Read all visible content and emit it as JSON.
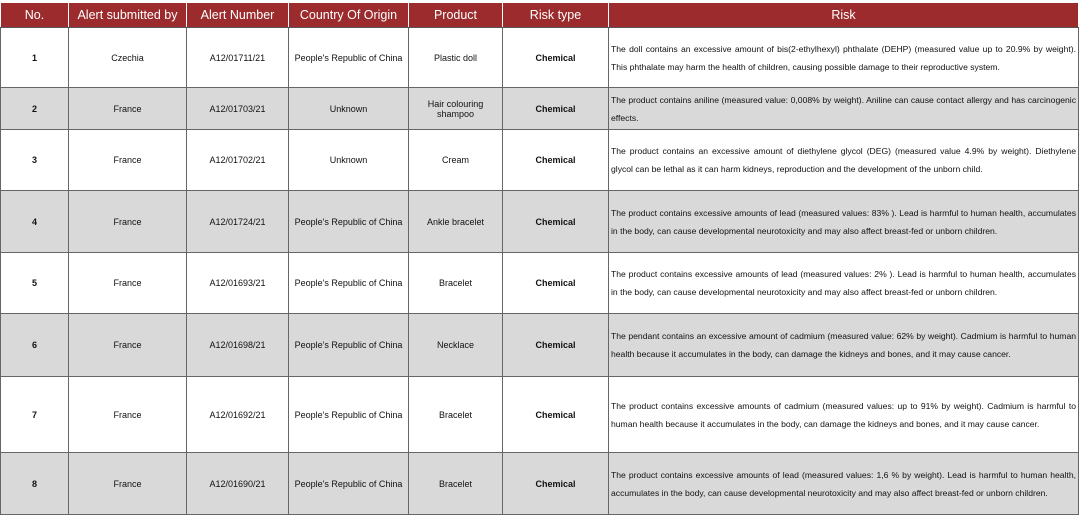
{
  "table": {
    "header": [
      "No.",
      "Alert submitted by",
      "Alert Number",
      "Country Of Origin",
      "Product",
      "Risk type",
      "Risk"
    ],
    "rows": [
      [
        "1",
        "Czechia",
        "A12/01711/21",
        "People's Republic of China",
        "Plastic doll",
        "Chemical",
        "The doll contains an excessive amount of bis(2-ethylhexyl) phthalate (DEHP) (measured value up to 20.9% by weight). This phthalate may harm the health of children, causing possible damage to their reproductive system."
      ],
      [
        "2",
        "France",
        "A12/01703/21",
        "Unknown",
        "Hair colouring shampoo",
        "Chemical",
        "The product contains aniline (measured value: 0,008% by weight). Aniline can cause contact allergy and has carcinogenic effects."
      ],
      [
        "3",
        "France",
        "A12/01702/21",
        "Unknown",
        "Cream",
        "Chemical",
        "The product contains an excessive amount of diethylene glycol (DEG) (measured value 4.9% by weight). Diethylene glycol can be lethal as it can harm kidneys, reproduction and the development of the unborn child."
      ],
      [
        "4",
        "France",
        "A12/01724/21",
        "People's Republic of China",
        "Ankle bracelet",
        "Chemical",
        "The product contains excessive amounts of lead (measured values: 83% ). Lead is harmful to human health, accumulates in the body, can cause developmental neurotoxicity and may also affect breast-fed or unborn children."
      ],
      [
        "5",
        "France",
        "A12/01693/21",
        "People's Republic of China",
        "Bracelet",
        "Chemical",
        "The product contains excessive amounts of lead (measured values: 2% ). Lead is harmful to human health, accumulates in the body, can cause developmental neurotoxicity and may also affect breast-fed or unborn children."
      ],
      [
        "6",
        "France",
        "A12/01698/21",
        "People's Republic of China",
        "Necklace",
        "Chemical",
        "The pendant contains an excessive amount of cadmium (measured value: 62% by weight). Cadmium is harmful to human health because it accumulates in the body, can damage the kidneys and bones, and it may cause cancer."
      ],
      [
        "7",
        "France",
        "A12/01692/21",
        "People's Republic of China",
        "Bracelet",
        "Chemical",
        "The product contains excessive amounts of cadmium  (measured values: up to 91%  by weight). Cadmium is harmful to human health because it accumulates in the body, can damage the kidneys and bones, and it may cause cancer."
      ],
      [
        "8",
        "France",
        "A12/01690/21",
        "People's Republic of China",
        "Bracelet",
        "Chemical",
        "The product contains excessive amounts of lead (measured values: 1,6 % by weight). Lead is harmful to human health, accumulates in the body, can cause developmental neurotoxicity and may also affect breast-fed or unborn children."
      ]
    ]
  }
}
